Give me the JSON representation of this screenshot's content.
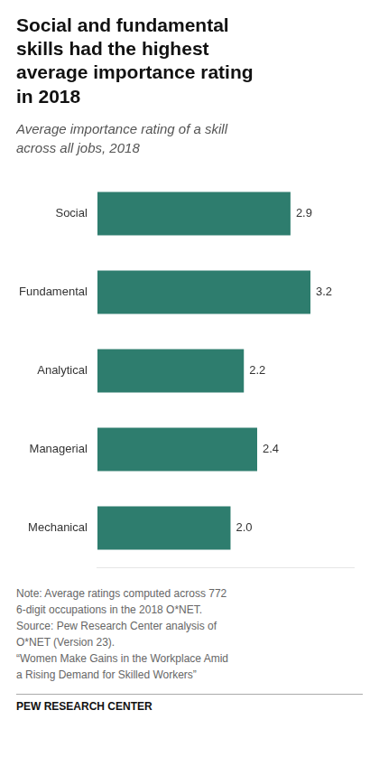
{
  "chart_data": {
    "type": "bar",
    "orientation": "horizontal",
    "title": "Social and fundamental\nskills had the highest\naverage importance rating\nin 2018",
    "subtitle": "Average importance rating of a skill\nacross all jobs, 2018",
    "categories": [
      "Social",
      "Fundamental",
      "Analytical",
      "Managerial",
      "Mechanical"
    ],
    "values": [
      2.9,
      3.2,
      2.2,
      2.4,
      2.0
    ],
    "value_labels": [
      "2.9",
      "3.2",
      "2.2",
      "2.4",
      "2.0"
    ],
    "data_labels": true,
    "color": "#2e7d6e",
    "xlim": [
      0,
      3.85
    ],
    "grid": false,
    "tick_labels": "y",
    "annotations": [
      "Note: Average ratings computed across 772\n6-digit occupations in the 2018 O*NET.\nSource: Pew Research Center analysis of\nO*NET (Version 23).\n“Women Make Gains in the Workplace Amid\na Rising Demand for Skilled Workers”",
      "PEW RESEARCH CENTER"
    ]
  }
}
